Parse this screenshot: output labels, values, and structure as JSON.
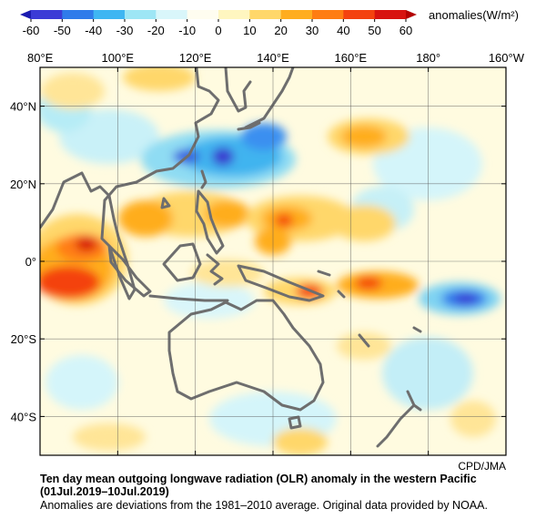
{
  "colorbar": {
    "ticks": [
      "-60",
      "-50",
      "-40",
      "-30",
      "-20",
      "-10",
      "0",
      "10",
      "20",
      "30",
      "40",
      "50",
      "60"
    ],
    "colors": [
      "#3b3bd6",
      "#2f7bea",
      "#3fb6f2",
      "#9ee6f5",
      "#d9f6fa",
      "#fffdf0",
      "#fff6c0",
      "#ffd76a",
      "#ffad1f",
      "#ff7d12",
      "#f4420f",
      "#d8120f"
    ],
    "unit_label": "anomalies(W/m²)"
  },
  "map": {
    "lon_labels": [
      "80°E",
      "100°E",
      "120°E",
      "140°E",
      "160°E",
      "180°",
      "160°W"
    ],
    "lat_labels": [
      "40°N",
      "20°N",
      "0°",
      "20°S",
      "40°S"
    ],
    "coastline_color": "#6e6e6e",
    "background_color": "#fffbe0"
  },
  "credit": "CPD/JMA",
  "caption": {
    "title": "Ten day mean outgoing longwave radiation (OLR) anomaly in the western Pacific",
    "period": "(01Jul.2019–10Jul.2019)",
    "note": "Anomalies are deviations from the 1981–2010 average. Original data provided by NOAA."
  }
}
